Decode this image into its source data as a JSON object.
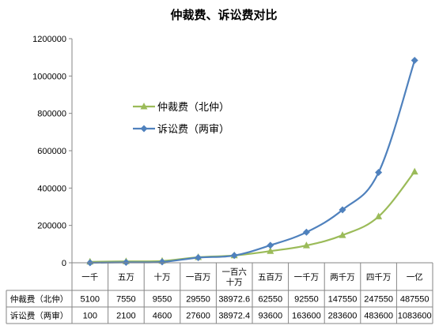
{
  "chart_data": {
    "type": "line",
    "title": "仲裁费、诉讼费对比",
    "categories": [
      "一千",
      "五万",
      "十万",
      "一百万",
      "一百六十万",
      "五百万",
      "一千万",
      "两千万",
      "四千万",
      "一亿"
    ],
    "category_display": [
      "一千",
      "五万",
      "十万",
      "一百万",
      "一百六\n十万",
      "五百万",
      "一千万",
      "两千万",
      "四千万",
      "一亿"
    ],
    "series": [
      {
        "name": "仲裁费（北仲）",
        "color": "#9BBB59",
        "marker": "triangle",
        "values": [
          5100,
          7550,
          9550,
          29550,
          38972.6,
          62550,
          92550,
          147550,
          247550,
          487550
        ],
        "labels": [
          "5100",
          "7550",
          "9550",
          "29550",
          "38972.6",
          "62550",
          "92550",
          "147550",
          "247550",
          "487550"
        ]
      },
      {
        "name": "诉讼费（两审）",
        "color": "#4F81BD",
        "marker": "diamond",
        "values": [
          100,
          2100,
          4600,
          27600,
          38972.4,
          93600,
          163600,
          283600,
          483600,
          1083600
        ],
        "labels": [
          "100",
          "2100",
          "4600",
          "27600",
          "38972.4",
          "93600",
          "163600",
          "283600",
          "483600",
          "1083600"
        ]
      }
    ],
    "ylim": [
      0,
      1200000
    ],
    "yticks": [
      0,
      200000,
      400000,
      600000,
      800000,
      1000000,
      1200000
    ],
    "ytick_labels": [
      "0",
      "200000",
      "400000",
      "600000",
      "800000",
      "1000000",
      "1200000"
    ],
    "legend_position": "inside-upper-left",
    "grid": false,
    "data_table": true
  }
}
